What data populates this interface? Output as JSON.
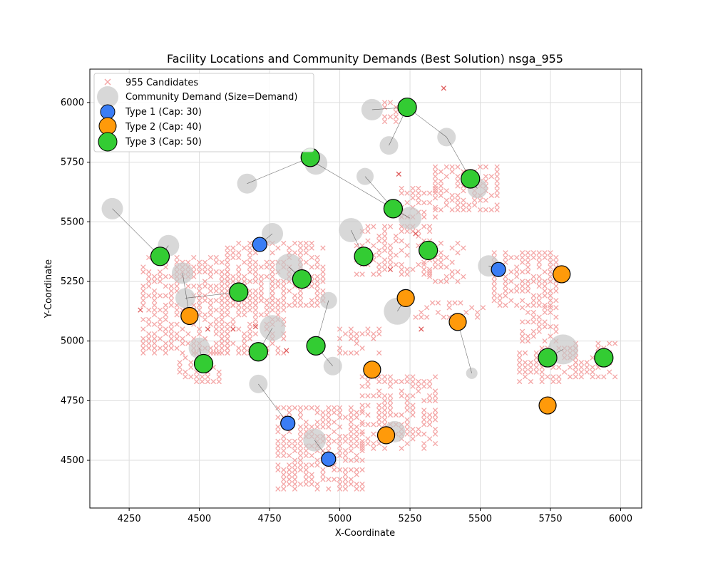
{
  "chart_data": {
    "type": "scatter",
    "title": "Facility Locations and Community Demands (Best Solution) nsga_955",
    "xlabel": "X-Coordinate",
    "ylabel": "Y-Coordinate",
    "xlim": [
      4110,
      6075
    ],
    "ylim": [
      4300,
      6140
    ],
    "xticks": [
      4250,
      4500,
      4750,
      5000,
      5250,
      5500,
      5750,
      6000
    ],
    "yticks": [
      4500,
      4750,
      5000,
      5250,
      5500,
      5750,
      6000
    ],
    "grid": true,
    "legend_position": "top-left",
    "legend": [
      {
        "key": "candidates",
        "label": "955 Candidates"
      },
      {
        "key": "communities",
        "label": "Community Demand (Size=Demand)"
      },
      {
        "key": "type1",
        "label": "Type 1 (Cap: 30)"
      },
      {
        "key": "type2",
        "label": "Type 2 (Cap: 40)"
      },
      {
        "key": "type3",
        "label": "Type 3 (Cap: 50)"
      }
    ],
    "colors": {
      "candidate": "#f4a6a6",
      "candidate_used": "#e06060",
      "community": "#c8c8c8",
      "type1": "#3a7df5",
      "type2": "#ff9a0a",
      "type3": "#33cc33",
      "grid": "#dddddd",
      "assign_line": "#000000"
    },
    "candidate_blocks": [
      {
        "x": [
          4300,
          4600
        ],
        "y": [
          4950,
          5350
        ],
        "density": 0.62
      },
      {
        "x": [
          4430,
          4570
        ],
        "y": [
          4830,
          4960
        ],
        "density": 0.6
      },
      {
        "x": [
          4600,
          4950
        ],
        "y": [
          5150,
          5420
        ],
        "density": 0.62
      },
      {
        "x": [
          4580,
          4800
        ],
        "y": [
          4950,
          5200
        ],
        "density": 0.55
      },
      {
        "x": [
          4780,
          5080
        ],
        "y": [
          4380,
          4720
        ],
        "density": 0.65
      },
      {
        "x": [
          5080,
          5350
        ],
        "y": [
          4550,
          4850
        ],
        "density": 0.55
      },
      {
        "x": [
          5000,
          5150
        ],
        "y": [
          4950,
          5060
        ],
        "density": 0.45
      },
      {
        "x": [
          5060,
          5320
        ],
        "y": [
          5280,
          5480
        ],
        "density": 0.55
      },
      {
        "x": [
          5200,
          5340
        ],
        "y": [
          5520,
          5640
        ],
        "density": 0.55
      },
      {
        "x": [
          5340,
          5570
        ],
        "y": [
          5550,
          5730
        ],
        "density": 0.6
      },
      {
        "x": [
          5300,
          5450
        ],
        "y": [
          5250,
          5420
        ],
        "density": 0.5
      },
      {
        "x": [
          5270,
          5520
        ],
        "y": [
          5100,
          5170
        ],
        "density": 0.4
      },
      {
        "x": [
          5550,
          5780
        ],
        "y": [
          5150,
          5380
        ],
        "density": 0.6
      },
      {
        "x": [
          5650,
          5780
        ],
        "y": [
          5000,
          5150
        ],
        "density": 0.5
      },
      {
        "x": [
          5640,
          5850
        ],
        "y": [
          4830,
          4980
        ],
        "density": 0.6
      },
      {
        "x": [
          5820,
          5990
        ],
        "y": [
          4850,
          5000
        ],
        "density": 0.55
      },
      {
        "x": [
          5160,
          5200
        ],
        "y": [
          5920,
          6000
        ],
        "density": 0.6
      }
    ],
    "candidates_highlighted": [
      {
        "x": 4530,
        "y": 5050
      },
      {
        "x": 4700,
        "y": 5060
      },
      {
        "x": 4620,
        "y": 5050
      },
      {
        "x": 4810,
        "y": 4960
      },
      {
        "x": 4290,
        "y": 5130
      },
      {
        "x": 5370,
        "y": 6060
      },
      {
        "x": 5270,
        "y": 5450
      },
      {
        "x": 5210,
        "y": 5700
      },
      {
        "x": 5180,
        "y": 5300
      },
      {
        "x": 5290,
        "y": 5050
      },
      {
        "x": 5560,
        "y": 5290
      }
    ],
    "communities": [
      {
        "x": 4190,
        "y": 5555,
        "r": 15
      },
      {
        "x": 4390,
        "y": 5400,
        "r": 15
      },
      {
        "x": 4440,
        "y": 5285,
        "r": 15
      },
      {
        "x": 4450,
        "y": 5180,
        "r": 14
      },
      {
        "x": 4500,
        "y": 4970,
        "r": 15
      },
      {
        "x": 4670,
        "y": 5660,
        "r": 14
      },
      {
        "x": 4710,
        "y": 4820,
        "r": 13
      },
      {
        "x": 4760,
        "y": 5450,
        "r": 15
      },
      {
        "x": 4760,
        "y": 5055,
        "r": 18
      },
      {
        "x": 4820,
        "y": 5310,
        "r": 19
      },
      {
        "x": 4910,
        "y": 4585,
        "r": 16
      },
      {
        "x": 4915,
        "y": 5745,
        "r": 16
      },
      {
        "x": 4960,
        "y": 5170,
        "r": 12
      },
      {
        "x": 4975,
        "y": 4895,
        "r": 13
      },
      {
        "x": 5040,
        "y": 5465,
        "r": 17
      },
      {
        "x": 5090,
        "y": 5690,
        "r": 12
      },
      {
        "x": 5115,
        "y": 5970,
        "r": 15
      },
      {
        "x": 5175,
        "y": 5820,
        "r": 13
      },
      {
        "x": 5195,
        "y": 4620,
        "r": 15
      },
      {
        "x": 5205,
        "y": 5125,
        "r": 19
      },
      {
        "x": 5250,
        "y": 5515,
        "r": 16
      },
      {
        "x": 5380,
        "y": 5855,
        "r": 13
      },
      {
        "x": 5470,
        "y": 4865,
        "r": 8
      },
      {
        "x": 5490,
        "y": 5640,
        "r": 14
      },
      {
        "x": 5530,
        "y": 5315,
        "r": 15
      },
      {
        "x": 5795,
        "y": 4965,
        "r": 21
      }
    ],
    "facilities": [
      {
        "x": 4715,
        "y": 5405,
        "type": 1
      },
      {
        "x": 4815,
        "y": 4655,
        "type": 1
      },
      {
        "x": 4960,
        "y": 4505,
        "type": 1
      },
      {
        "x": 5565,
        "y": 5300,
        "type": 1
      },
      {
        "x": 4465,
        "y": 5105,
        "type": 2
      },
      {
        "x": 5115,
        "y": 4880,
        "type": 2
      },
      {
        "x": 5165,
        "y": 4605,
        "type": 2
      },
      {
        "x": 5235,
        "y": 5180,
        "type": 2
      },
      {
        "x": 5420,
        "y": 5080,
        "type": 2
      },
      {
        "x": 5790,
        "y": 5280,
        "type": 2
      },
      {
        "x": 5740,
        "y": 4730,
        "type": 2
      },
      {
        "x": 4360,
        "y": 5355,
        "type": 3
      },
      {
        "x": 4515,
        "y": 4905,
        "type": 3
      },
      {
        "x": 4640,
        "y": 5205,
        "type": 3
      },
      {
        "x": 4710,
        "y": 4955,
        "type": 3
      },
      {
        "x": 4865,
        "y": 5260,
        "type": 3
      },
      {
        "x": 4895,
        "y": 5770,
        "type": 3
      },
      {
        "x": 4915,
        "y": 4980,
        "type": 3
      },
      {
        "x": 5085,
        "y": 5355,
        "type": 3
      },
      {
        "x": 5190,
        "y": 5555,
        "type": 3
      },
      {
        "x": 5240,
        "y": 5980,
        "type": 3
      },
      {
        "x": 5315,
        "y": 5380,
        "type": 3
      },
      {
        "x": 5465,
        "y": 5680,
        "type": 3
      },
      {
        "x": 5740,
        "y": 4930,
        "type": 3
      },
      {
        "x": 5940,
        "y": 4930,
        "type": 3
      }
    ],
    "assignments": [
      [
        4190,
        5555,
        4360,
        5355
      ],
      [
        4390,
        5400,
        4360,
        5355
      ],
      [
        4440,
        5285,
        4465,
        5105
      ],
      [
        4450,
        5180,
        4640,
        5205
      ],
      [
        4500,
        4970,
        4515,
        4905
      ],
      [
        4670,
        5660,
        4895,
        5770
      ],
      [
        4710,
        4820,
        4815,
        4655
      ],
      [
        4760,
        5450,
        4715,
        5405
      ],
      [
        4760,
        5055,
        4710,
        4955
      ],
      [
        4820,
        5310,
        4865,
        5260
      ],
      [
        4910,
        4585,
        4960,
        4505
      ],
      [
        4915,
        5745,
        5190,
        5555
      ],
      [
        4960,
        5170,
        4915,
        4980
      ],
      [
        4975,
        4895,
        4915,
        4980
      ],
      [
        5040,
        5465,
        5085,
        5355
      ],
      [
        5090,
        5690,
        5190,
        5555
      ],
      [
        5115,
        5970,
        5240,
        5980
      ],
      [
        5175,
        5820,
        5240,
        5980
      ],
      [
        5195,
        4620,
        5165,
        4605
      ],
      [
        5205,
        5125,
        5235,
        5180
      ],
      [
        5250,
        5515,
        5190,
        5555
      ],
      [
        5380,
        5855,
        5240,
        5980
      ],
      [
        5380,
        5855,
        5465,
        5680
      ],
      [
        5470,
        4865,
        5420,
        5080
      ],
      [
        5490,
        5640,
        5465,
        5680
      ],
      [
        5530,
        5315,
        5565,
        5300
      ],
      [
        5795,
        4965,
        5740,
        4930
      ]
    ]
  }
}
